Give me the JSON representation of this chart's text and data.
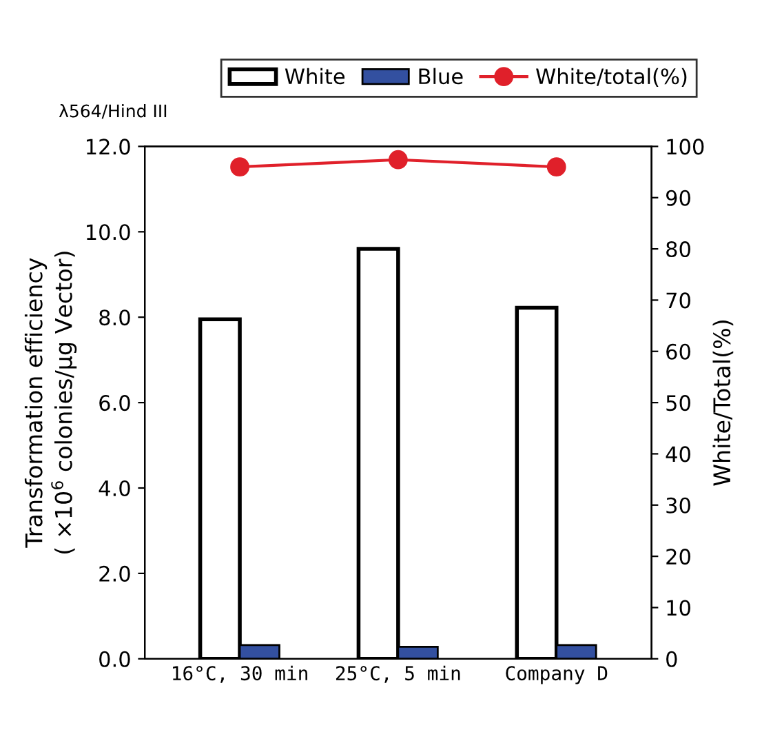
{
  "chart_data": {
    "type": "bar",
    "subtitle": "λ564/Hind III",
    "ylabel": "Transformation efficiency\n( ×10$^{6}$ colonies/μg Vector)",
    "y2label": "White/Total(%)",
    "categories": [
      "16°C, 30 min",
      "25°C, 5 min",
      "Company D"
    ],
    "series": [
      {
        "name": "White",
        "color": "#ffffff",
        "values": [
          7.95,
          9.6,
          8.22
        ]
      },
      {
        "name": "Blue",
        "color": "#3350a0",
        "values": [
          0.32,
          0.28,
          0.32
        ]
      },
      {
        "name": "White/total(%)",
        "type": "line",
        "axis": "y2",
        "color": "#e0202a",
        "values": [
          96.0,
          97.4,
          96.0
        ]
      }
    ],
    "ylim": [
      0,
      12
    ],
    "yticks": [
      {
        "value": 0,
        "label": "0.0"
      },
      {
        "value": 2,
        "label": "2.0"
      },
      {
        "value": 4,
        "label": "4.0"
      },
      {
        "value": 6,
        "label": "6.0"
      },
      {
        "value": 8,
        "label": "8.0"
      },
      {
        "value": 10,
        "label": "10.0"
      },
      {
        "value": 12,
        "label": "12.0"
      }
    ],
    "y2lim": [
      0,
      100
    ],
    "y2ticks": [
      0,
      10,
      20,
      30,
      40,
      50,
      60,
      70,
      80,
      90,
      100
    ],
    "marker": "circle",
    "line_style": "solid",
    "grid": false,
    "legend": "top"
  }
}
